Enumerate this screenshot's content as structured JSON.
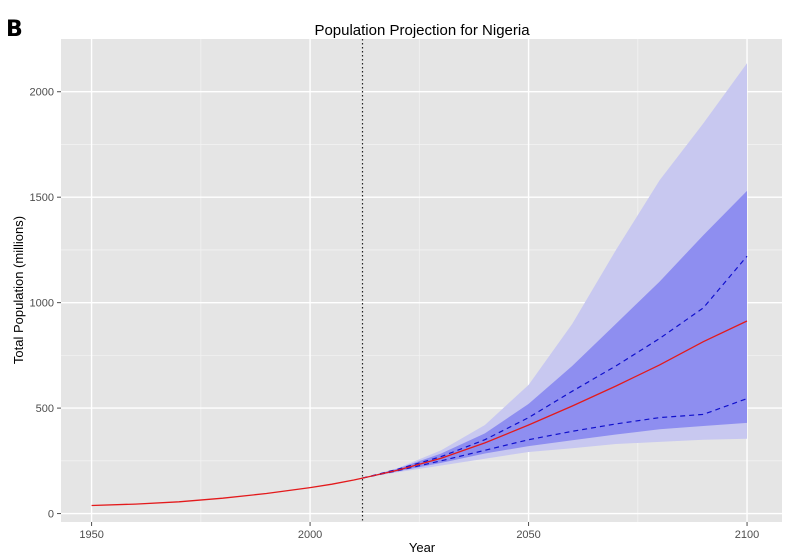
{
  "panel_label": "B",
  "chart_data": {
    "type": "line",
    "title": "Population Projection for Nigeria",
    "xlabel": "Year",
    "ylabel": "Total Population (millions)",
    "xlim": [
      1943,
      2108
    ],
    "ylim": [
      -40,
      2250
    ],
    "x_ticks": [
      1950,
      2000,
      2050,
      2100
    ],
    "y_ticks": [
      0,
      500,
      1000,
      1500,
      2000
    ],
    "grid": true,
    "background": "#e5e5e5",
    "vertical_marker": {
      "x": 2012,
      "style": "dotted"
    },
    "historical": {
      "color": "#e31a1c",
      "x": [
        1950,
        1960,
        1970,
        1980,
        1990,
        2000,
        2005,
        2010,
        2012
      ],
      "y": [
        38,
        45,
        56,
        73,
        95,
        123,
        139,
        159,
        168
      ]
    },
    "projection": {
      "x": [
        2012,
        2020,
        2030,
        2040,
        2050,
        2060,
        2070,
        2080,
        2090,
        2100
      ],
      "median": [
        168,
        205,
        262,
        335,
        420,
        510,
        605,
        705,
        815,
        913
      ],
      "pi80_lower": [
        168,
        203,
        250,
        300,
        350,
        390,
        425,
        455,
        470,
        545
      ],
      "pi80_upper": [
        168,
        210,
        270,
        350,
        455,
        580,
        700,
        830,
        975,
        1220
      ],
      "pi95_lower": [
        168,
        200,
        240,
        285,
        320,
        348,
        375,
        400,
        415,
        430
      ],
      "pi95_upper": [
        168,
        212,
        285,
        380,
        520,
        700,
        900,
        1100,
        1320,
        1530
      ],
      "outer_lower": [
        168,
        196,
        228,
        260,
        292,
        310,
        330,
        340,
        350,
        355
      ],
      "outer_upper": [
        168,
        215,
        300,
        420,
        610,
        900,
        1250,
        1580,
        1850,
        2135
      ],
      "colors": {
        "median": "#e31a1c",
        "pi80": "#1010cc",
        "band_inner": "#8e8ef0",
        "band_outer": "#c8c8f0"
      }
    }
  }
}
